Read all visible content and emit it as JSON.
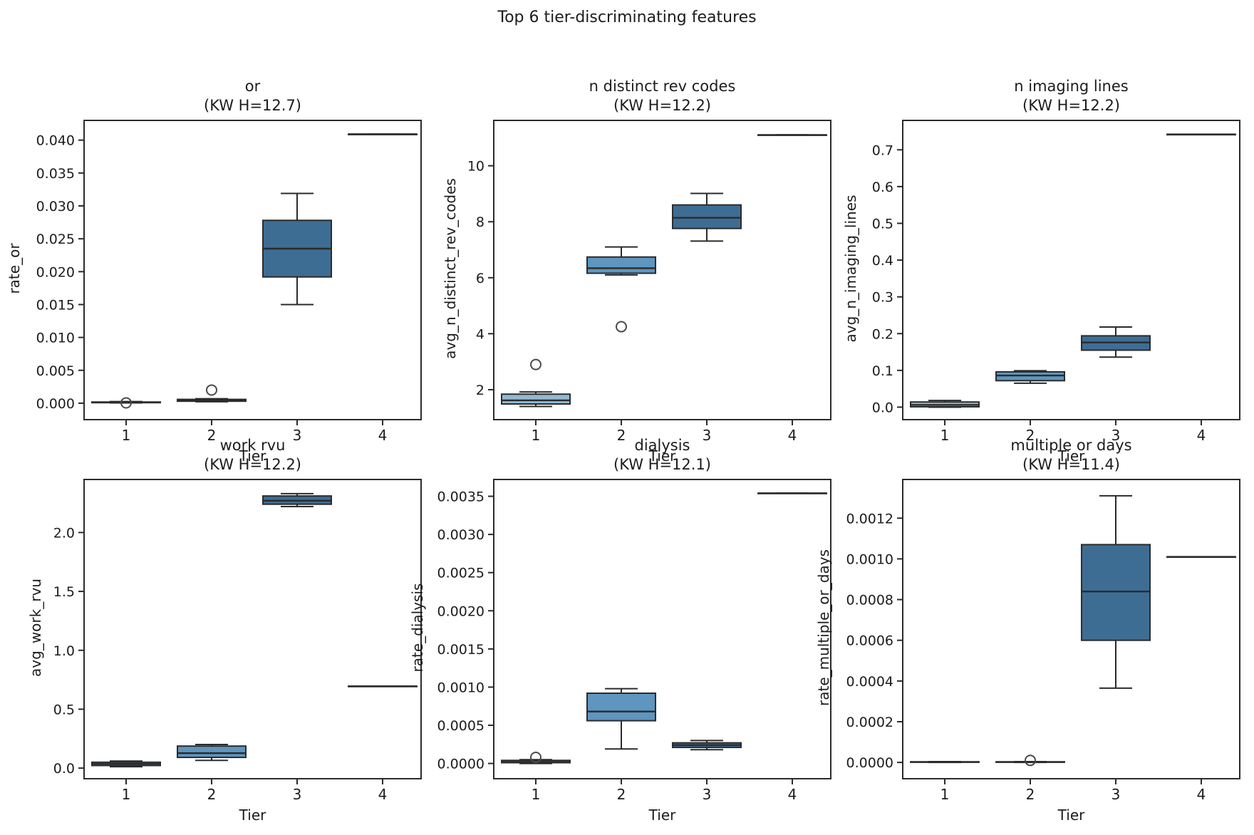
{
  "figure": {
    "suptitle": "Top 6 tier-discriminating features",
    "xlabel": "Tier",
    "colors": {
      "background": "#ffffff",
      "text": "#1c1c1c",
      "box_edge": "#2b2b2b",
      "flier_stroke": "#4a4a4a",
      "tier_palette": [
        "#92b9d3",
        "#5e96c0",
        "#3e6d94",
        "#3e6d94"
      ]
    }
  },
  "chart_data": [
    {
      "type": "box",
      "title_line1": "or",
      "title_line2": "(KW H=12.7)",
      "kw_h": 12.7,
      "xlabel": "Tier",
      "ylabel": "rate_or",
      "categories": [
        "1",
        "2",
        "3",
        "4"
      ],
      "ylim": [
        -0.0025,
        0.043
      ],
      "ytick_values": [
        0.0,
        0.005,
        0.01,
        0.015,
        0.02,
        0.025,
        0.03,
        0.035,
        0.04
      ],
      "ytick_labels": [
        "0.000",
        "0.005",
        "0.010",
        "0.015",
        "0.020",
        "0.025",
        "0.030",
        "0.035",
        "0.040"
      ],
      "boxes": [
        {
          "tier": "1",
          "whislo": 5e-05,
          "q1": 8e-05,
          "med": 0.00012,
          "q3": 0.00018,
          "whishi": 0.00025,
          "fliers": [
            5e-05
          ]
        },
        {
          "tier": "2",
          "whislo": 0.00022,
          "q1": 0.0003,
          "med": 0.00042,
          "q3": 0.00058,
          "whishi": 0.00068,
          "fliers": [
            0.002
          ]
        },
        {
          "tier": "3",
          "whislo": 0.015,
          "q1": 0.0192,
          "med": 0.0235,
          "q3": 0.0278,
          "whishi": 0.0319,
          "fliers": []
        },
        {
          "tier": "4",
          "whislo": 0.0409,
          "q1": 0.0409,
          "med": 0.0409,
          "q3": 0.0409,
          "whishi": 0.0409,
          "fliers": []
        }
      ]
    },
    {
      "type": "box",
      "title_line1": "n distinct rev codes",
      "title_line2": "(KW H=12.2)",
      "kw_h": 12.2,
      "xlabel": "Tier",
      "ylabel": "avg_n_distinct_rev_codes",
      "categories": [
        "1",
        "2",
        "3",
        "4"
      ],
      "ylim": [
        0.93,
        11.62
      ],
      "ytick_values": [
        2,
        4,
        6,
        8,
        10
      ],
      "ytick_labels": [
        "2",
        "4",
        "6",
        "8",
        "10"
      ],
      "boxes": [
        {
          "tier": "1",
          "whislo": 1.4,
          "q1": 1.49,
          "med": 1.62,
          "q3": 1.84,
          "whishi": 1.92,
          "fliers": [
            2.9
          ]
        },
        {
          "tier": "2",
          "whislo": 6.1,
          "q1": 6.16,
          "med": 6.34,
          "q3": 6.74,
          "whishi": 7.1,
          "fliers": [
            4.25
          ]
        },
        {
          "tier": "3",
          "whislo": 7.31,
          "q1": 7.76,
          "med": 8.14,
          "q3": 8.6,
          "whishi": 9.01,
          "fliers": []
        },
        {
          "tier": "4",
          "whislo": 11.1,
          "q1": 11.1,
          "med": 11.1,
          "q3": 11.1,
          "whishi": 11.1,
          "fliers": []
        }
      ]
    },
    {
      "type": "box",
      "title_line1": "n imaging lines",
      "title_line2": "(KW H=12.2)",
      "kw_h": 12.2,
      "xlabel": "Tier",
      "ylabel": "avg_n_imaging_lines",
      "categories": [
        "1",
        "2",
        "3",
        "4"
      ],
      "ylim": [
        -0.034,
        0.78
      ],
      "ytick_values": [
        0.0,
        0.1,
        0.2,
        0.3,
        0.4,
        0.5,
        0.6,
        0.7
      ],
      "ytick_labels": [
        "0.0",
        "0.1",
        "0.2",
        "0.3",
        "0.4",
        "0.5",
        "0.6",
        "0.7"
      ],
      "boxes": [
        {
          "tier": "1",
          "whislo": 0.0,
          "q1": 0.001,
          "med": 0.006,
          "q3": 0.014,
          "whishi": 0.018,
          "fliers": []
        },
        {
          "tier": "2",
          "whislo": 0.065,
          "q1": 0.072,
          "med": 0.086,
          "q3": 0.096,
          "whishi": 0.099,
          "fliers": []
        },
        {
          "tier": "3",
          "whislo": 0.136,
          "q1": 0.155,
          "med": 0.176,
          "q3": 0.194,
          "whishi": 0.218,
          "fliers": []
        },
        {
          "tier": "4",
          "whislo": 0.742,
          "q1": 0.742,
          "med": 0.742,
          "q3": 0.742,
          "whishi": 0.742,
          "fliers": []
        }
      ]
    },
    {
      "type": "box",
      "title_line1": "work rvu",
      "title_line2": "(KW H=12.2)",
      "kw_h": 12.2,
      "xlabel": "Tier",
      "ylabel": "avg_work_rvu",
      "categories": [
        "1",
        "2",
        "3",
        "4"
      ],
      "ylim": [
        -0.09,
        2.45
      ],
      "ytick_values": [
        0.0,
        0.5,
        1.0,
        1.5,
        2.0
      ],
      "ytick_labels": [
        "0.0",
        "0.5",
        "1.0",
        "1.5",
        "2.0"
      ],
      "boxes": [
        {
          "tier": "1",
          "whislo": 0.012,
          "q1": 0.022,
          "med": 0.036,
          "q3": 0.05,
          "whishi": 0.06,
          "fliers": []
        },
        {
          "tier": "2",
          "whislo": 0.066,
          "q1": 0.091,
          "med": 0.127,
          "q3": 0.187,
          "whishi": 0.2,
          "fliers": []
        },
        {
          "tier": "3",
          "whislo": 2.22,
          "q1": 2.24,
          "med": 2.27,
          "q3": 2.31,
          "whishi": 2.33,
          "fliers": []
        },
        {
          "tier": "4",
          "whislo": 0.695,
          "q1": 0.695,
          "med": 0.695,
          "q3": 0.695,
          "whishi": 0.695,
          "fliers": []
        }
      ]
    },
    {
      "type": "box",
      "title_line1": "dialysis",
      "title_line2": "(KW H=12.1)",
      "kw_h": 12.1,
      "xlabel": "Tier",
      "ylabel": "rate_dialysis",
      "categories": [
        "1",
        "2",
        "3",
        "4"
      ],
      "ylim": [
        -0.0002,
        0.00372
      ],
      "ytick_values": [
        0.0,
        0.0005,
        0.001,
        0.0015,
        0.002,
        0.0025,
        0.003,
        0.0035
      ],
      "ytick_labels": [
        "0.0000",
        "0.0005",
        "0.0010",
        "0.0015",
        "0.0020",
        "0.0025",
        "0.0030",
        "0.0035"
      ],
      "boxes": [
        {
          "tier": "1",
          "whislo": 0.0,
          "q1": 1e-05,
          "med": 2e-05,
          "q3": 4e-05,
          "whishi": 5e-05,
          "fliers": [
            8e-05
          ]
        },
        {
          "tier": "2",
          "whislo": 0.00019,
          "q1": 0.00056,
          "med": 0.00068,
          "q3": 0.00092,
          "whishi": 0.00098,
          "fliers": []
        },
        {
          "tier": "3",
          "whislo": 0.00018,
          "q1": 0.00021,
          "med": 0.00024,
          "q3": 0.00027,
          "whishi": 0.0003,
          "fliers": []
        },
        {
          "tier": "4",
          "whislo": 0.00354,
          "q1": 0.00354,
          "med": 0.00354,
          "q3": 0.00354,
          "whishi": 0.00354,
          "fliers": []
        }
      ]
    },
    {
      "type": "box",
      "title_line1": "multiple or days",
      "title_line2": "(KW H=11.4)",
      "kw_h": 11.4,
      "xlabel": "Tier",
      "ylabel": "rate_multiple_or_days",
      "categories": [
        "1",
        "2",
        "3",
        "4"
      ],
      "ylim": [
        -8e-05,
        0.00139
      ],
      "ytick_values": [
        0.0,
        0.0002,
        0.0004,
        0.0006,
        0.0008,
        0.001,
        0.0012
      ],
      "ytick_labels": [
        "0.0000",
        "0.0002",
        "0.0004",
        "0.0006",
        "0.0008",
        "0.0010",
        "0.0012"
      ],
      "boxes": [
        {
          "tier": "1",
          "whislo": 0.0,
          "q1": 1e-06,
          "med": 2e-06,
          "q3": 3e-06,
          "whishi": 4e-06,
          "fliers": []
        },
        {
          "tier": "2",
          "whislo": 0.0,
          "q1": 1e-06,
          "med": 2e-06,
          "q3": 3e-06,
          "whishi": 4e-06,
          "fliers": [
            1e-05
          ]
        },
        {
          "tier": "3",
          "whislo": 0.000365,
          "q1": 0.0006,
          "med": 0.00084,
          "q3": 0.00107,
          "whishi": 0.00131,
          "fliers": []
        },
        {
          "tier": "4",
          "whislo": 0.00101,
          "q1": 0.00101,
          "med": 0.00101,
          "q3": 0.00101,
          "whishi": 0.00101,
          "fliers": []
        }
      ]
    }
  ]
}
